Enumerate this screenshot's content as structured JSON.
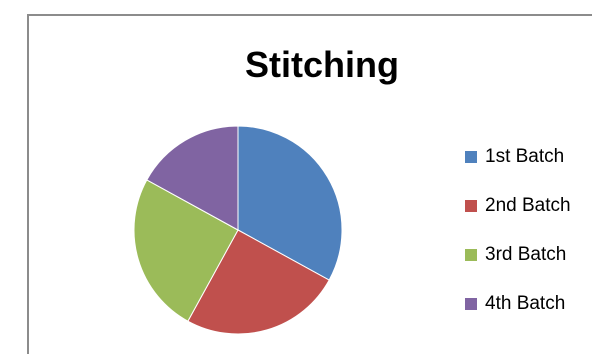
{
  "chart_data": {
    "type": "pie",
    "title": "Stitching",
    "categories": [
      "1st Batch",
      "2nd Batch",
      "3rd Batch",
      "4th Batch"
    ],
    "values": [
      33,
      25,
      25,
      17
    ],
    "colors": [
      "#4f81bd",
      "#c0504d",
      "#9bbb59",
      "#8064a2"
    ],
    "legend_position": "right"
  }
}
